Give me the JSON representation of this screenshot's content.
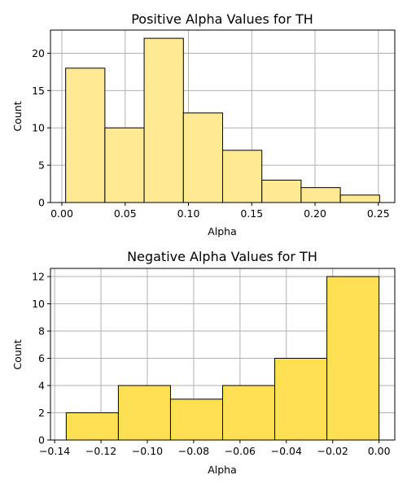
{
  "chart_data": [
    {
      "type": "bar",
      "title": "Positive Alpha Values for TH",
      "xlabel": "Alpha",
      "ylabel": "Count",
      "bin_edges": [
        0.003,
        0.034,
        0.065,
        0.096,
        0.127,
        0.158,
        0.189,
        0.22,
        0.251
      ],
      "values": [
        18,
        10,
        22,
        12,
        7,
        3,
        2,
        1
      ],
      "xlim": [
        -0.009,
        0.263
      ],
      "ylim": [
        0,
        23.1
      ],
      "xticks": [
        0.0,
        0.05,
        0.1,
        0.15,
        0.2,
        0.25
      ],
      "xtick_labels": [
        "0.00",
        "0.05",
        "0.10",
        "0.15",
        "0.20",
        "0.25"
      ],
      "yticks": [
        0,
        5,
        10,
        15,
        20
      ],
      "ytick_labels": [
        "0",
        "5",
        "10",
        "15",
        "20"
      ],
      "grid": true,
      "bar_color": "#ffe993"
    },
    {
      "type": "bar",
      "title": "Negative Alpha Values for TH",
      "xlabel": "Alpha",
      "ylabel": "Count",
      "bin_edges": [
        -0.135,
        -0.1125,
        -0.09,
        -0.0675,
        -0.045,
        -0.0225,
        0.0
      ],
      "values": [
        2,
        4,
        3,
        4,
        6,
        12
      ],
      "xlim": [
        -0.1418,
        0.0068
      ],
      "ylim": [
        0,
        12.6
      ],
      "xticks": [
        -0.14,
        -0.12,
        -0.1,
        -0.08,
        -0.06,
        -0.04,
        -0.02,
        0.0
      ],
      "xtick_labels": [
        "−0.14",
        "−0.12",
        "−0.10",
        "−0.08",
        "−0.06",
        "−0.04",
        "−0.02",
        "0.00"
      ],
      "yticks": [
        0,
        2,
        4,
        6,
        8,
        10,
        12
      ],
      "ytick_labels": [
        "0",
        "2",
        "4",
        "6",
        "8",
        "10",
        "12"
      ],
      "grid": true,
      "bar_color": "#ffe055"
    }
  ]
}
